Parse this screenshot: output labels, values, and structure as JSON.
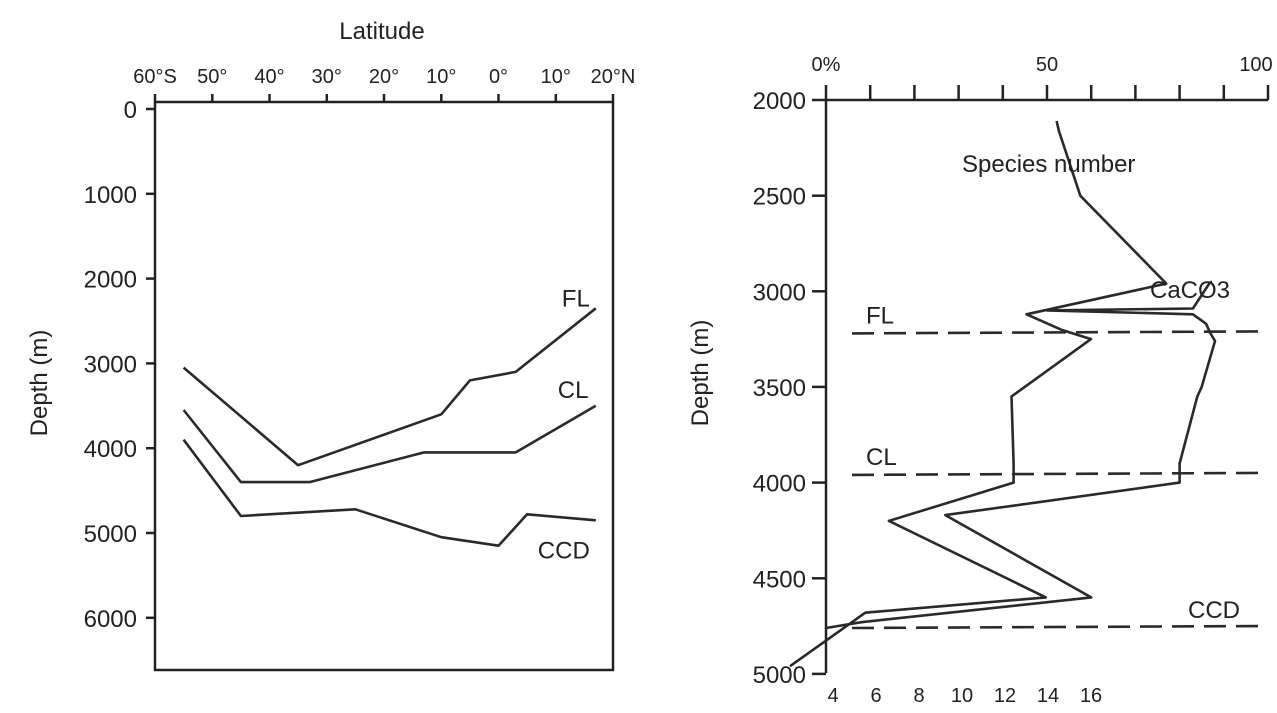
{
  "chart_data": [
    {
      "type": "line",
      "title": "",
      "xlabel": "Latitude",
      "ylabel": "Depth (m)",
      "x_ticks": [
        "60°S",
        "50°",
        "40°",
        "30°",
        "20°",
        "10°",
        "0°",
        "10°",
        "20°N"
      ],
      "x_tick_values": [
        -60,
        -50,
        -40,
        -30,
        -20,
        -10,
        0,
        10,
        20
      ],
      "xlim": [
        -60,
        20
      ],
      "y_ticks": [
        "0",
        "1000",
        "2000",
        "3000",
        "4000",
        "5000",
        "6000"
      ],
      "y_tick_values": [
        0,
        1000,
        2000,
        3000,
        4000,
        5000,
        6000
      ],
      "ylim": [
        0,
        6700
      ],
      "y_inverted": true,
      "series": [
        {
          "name": "FL",
          "x": [
            -55,
            -35,
            -10,
            -5,
            3,
            17
          ],
          "y": [
            3050,
            4200,
            3600,
            3200,
            3100,
            2350
          ]
        },
        {
          "name": "CL",
          "x": [
            -55,
            -45,
            -33,
            -13,
            3,
            17
          ],
          "y": [
            3550,
            4400,
            4400,
            4050,
            4050,
            3500
          ]
        },
        {
          "name": "CCD",
          "x": [
            -55,
            -45,
            -25,
            -10,
            0,
            5,
            17
          ],
          "y": [
            3900,
            4800,
            4720,
            5050,
            5150,
            4780,
            4850
          ]
        }
      ]
    },
    {
      "type": "line",
      "title": "",
      "xlabel": "",
      "ylabel": "Depth (m)",
      "top_axis": {
        "ticks": [
          "0%",
          "50",
          "100"
        ],
        "tick_values": [
          0,
          50,
          100
        ],
        "minor_step": 10,
        "range": [
          0,
          100
        ]
      },
      "bottom_axis": {
        "ticks": [
          "4",
          "6",
          "8",
          "10",
          "12",
          "14",
          "16"
        ],
        "tick_values": [
          4,
          6,
          8,
          10,
          12,
          14,
          16
        ],
        "range": [
          2,
          22
        ]
      },
      "y_ticks": [
        "2000",
        "2500",
        "3000",
        "3500",
        "4000",
        "4500",
        "5000"
      ],
      "y_tick_values": [
        2000,
        2500,
        3000,
        3500,
        4000,
        4500,
        5000
      ],
      "ylim": [
        2000,
        5000
      ],
      "y_inverted": true,
      "series": [
        {
          "name": "Species number",
          "axis": "bottom",
          "x": [
            14.4,
            14.5,
            15.5,
            19.5,
            13.0,
            14.0,
            14.6,
            16.0,
            12.3,
            12.4,
            12.4,
            6.6,
            13.9,
            5.5,
            2.0
          ],
          "y": [
            2110,
            2160,
            2500,
            2960,
            3120,
            3170,
            3200,
            3250,
            3550,
            3900,
            4000,
            4200,
            4600,
            4680,
            4960
          ]
        },
        {
          "name": "CaCO3",
          "axis": "top",
          "x": [
            87,
            83,
            50,
            83,
            86,
            87,
            88,
            85,
            84,
            80,
            80,
            27,
            60,
            8,
            0
          ],
          "y": [
            2950,
            3090,
            3100,
            3120,
            3170,
            3220,
            3260,
            3500,
            3550,
            3900,
            4000,
            4170,
            4600,
            4730,
            4760
          ]
        }
      ],
      "reference_lines": [
        {
          "label": "FL",
          "depth": 3220
        },
        {
          "label": "CL",
          "depth": 3960
        },
        {
          "label": "CCD",
          "depth": 4760
        }
      ]
    }
  ]
}
